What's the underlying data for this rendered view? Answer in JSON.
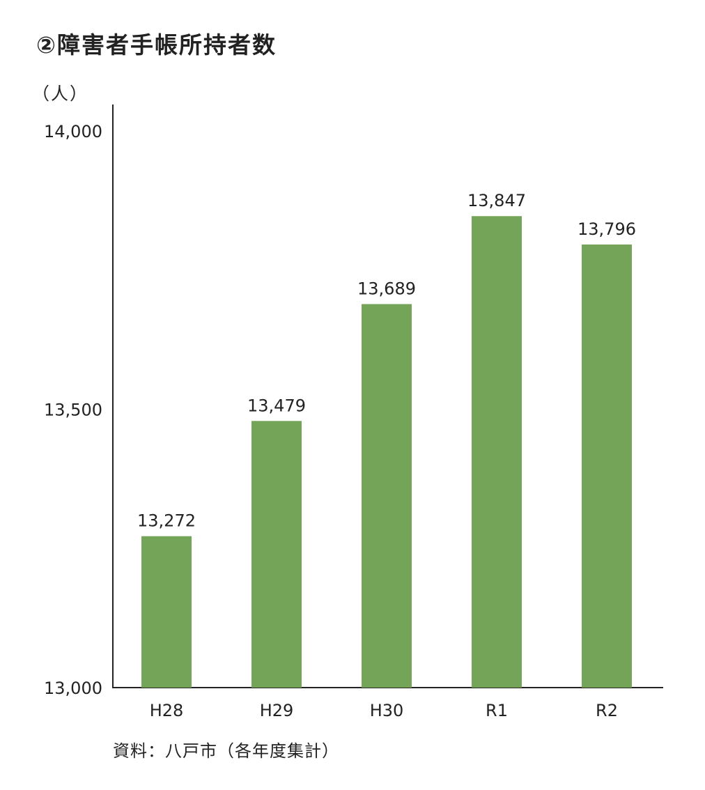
{
  "title": "②障害者手帳所持者数",
  "unit_label": "（人）",
  "source": "資料：八戸市（各年度集計）",
  "colors": {
    "bar": "#74a457",
    "axis": "#222222",
    "text": "#222222"
  },
  "chart_data": {
    "type": "bar",
    "title": "②障害者手帳所持者数",
    "ylabel": "（人）",
    "xlabel": "",
    "categories": [
      "H28",
      "H29",
      "H30",
      "R1",
      "R2"
    ],
    "values": [
      13272,
      13479,
      13689,
      13847,
      13796
    ],
    "value_labels": [
      "13,272",
      "13,479",
      "13,689",
      "13,847",
      "13,796"
    ],
    "ylim": [
      13000,
      14000
    ],
    "yticks": [
      13000,
      13500,
      14000
    ],
    "ytick_labels": [
      "13,000",
      "13,500",
      "14,000"
    ],
    "grid": false,
    "legend": "none"
  }
}
